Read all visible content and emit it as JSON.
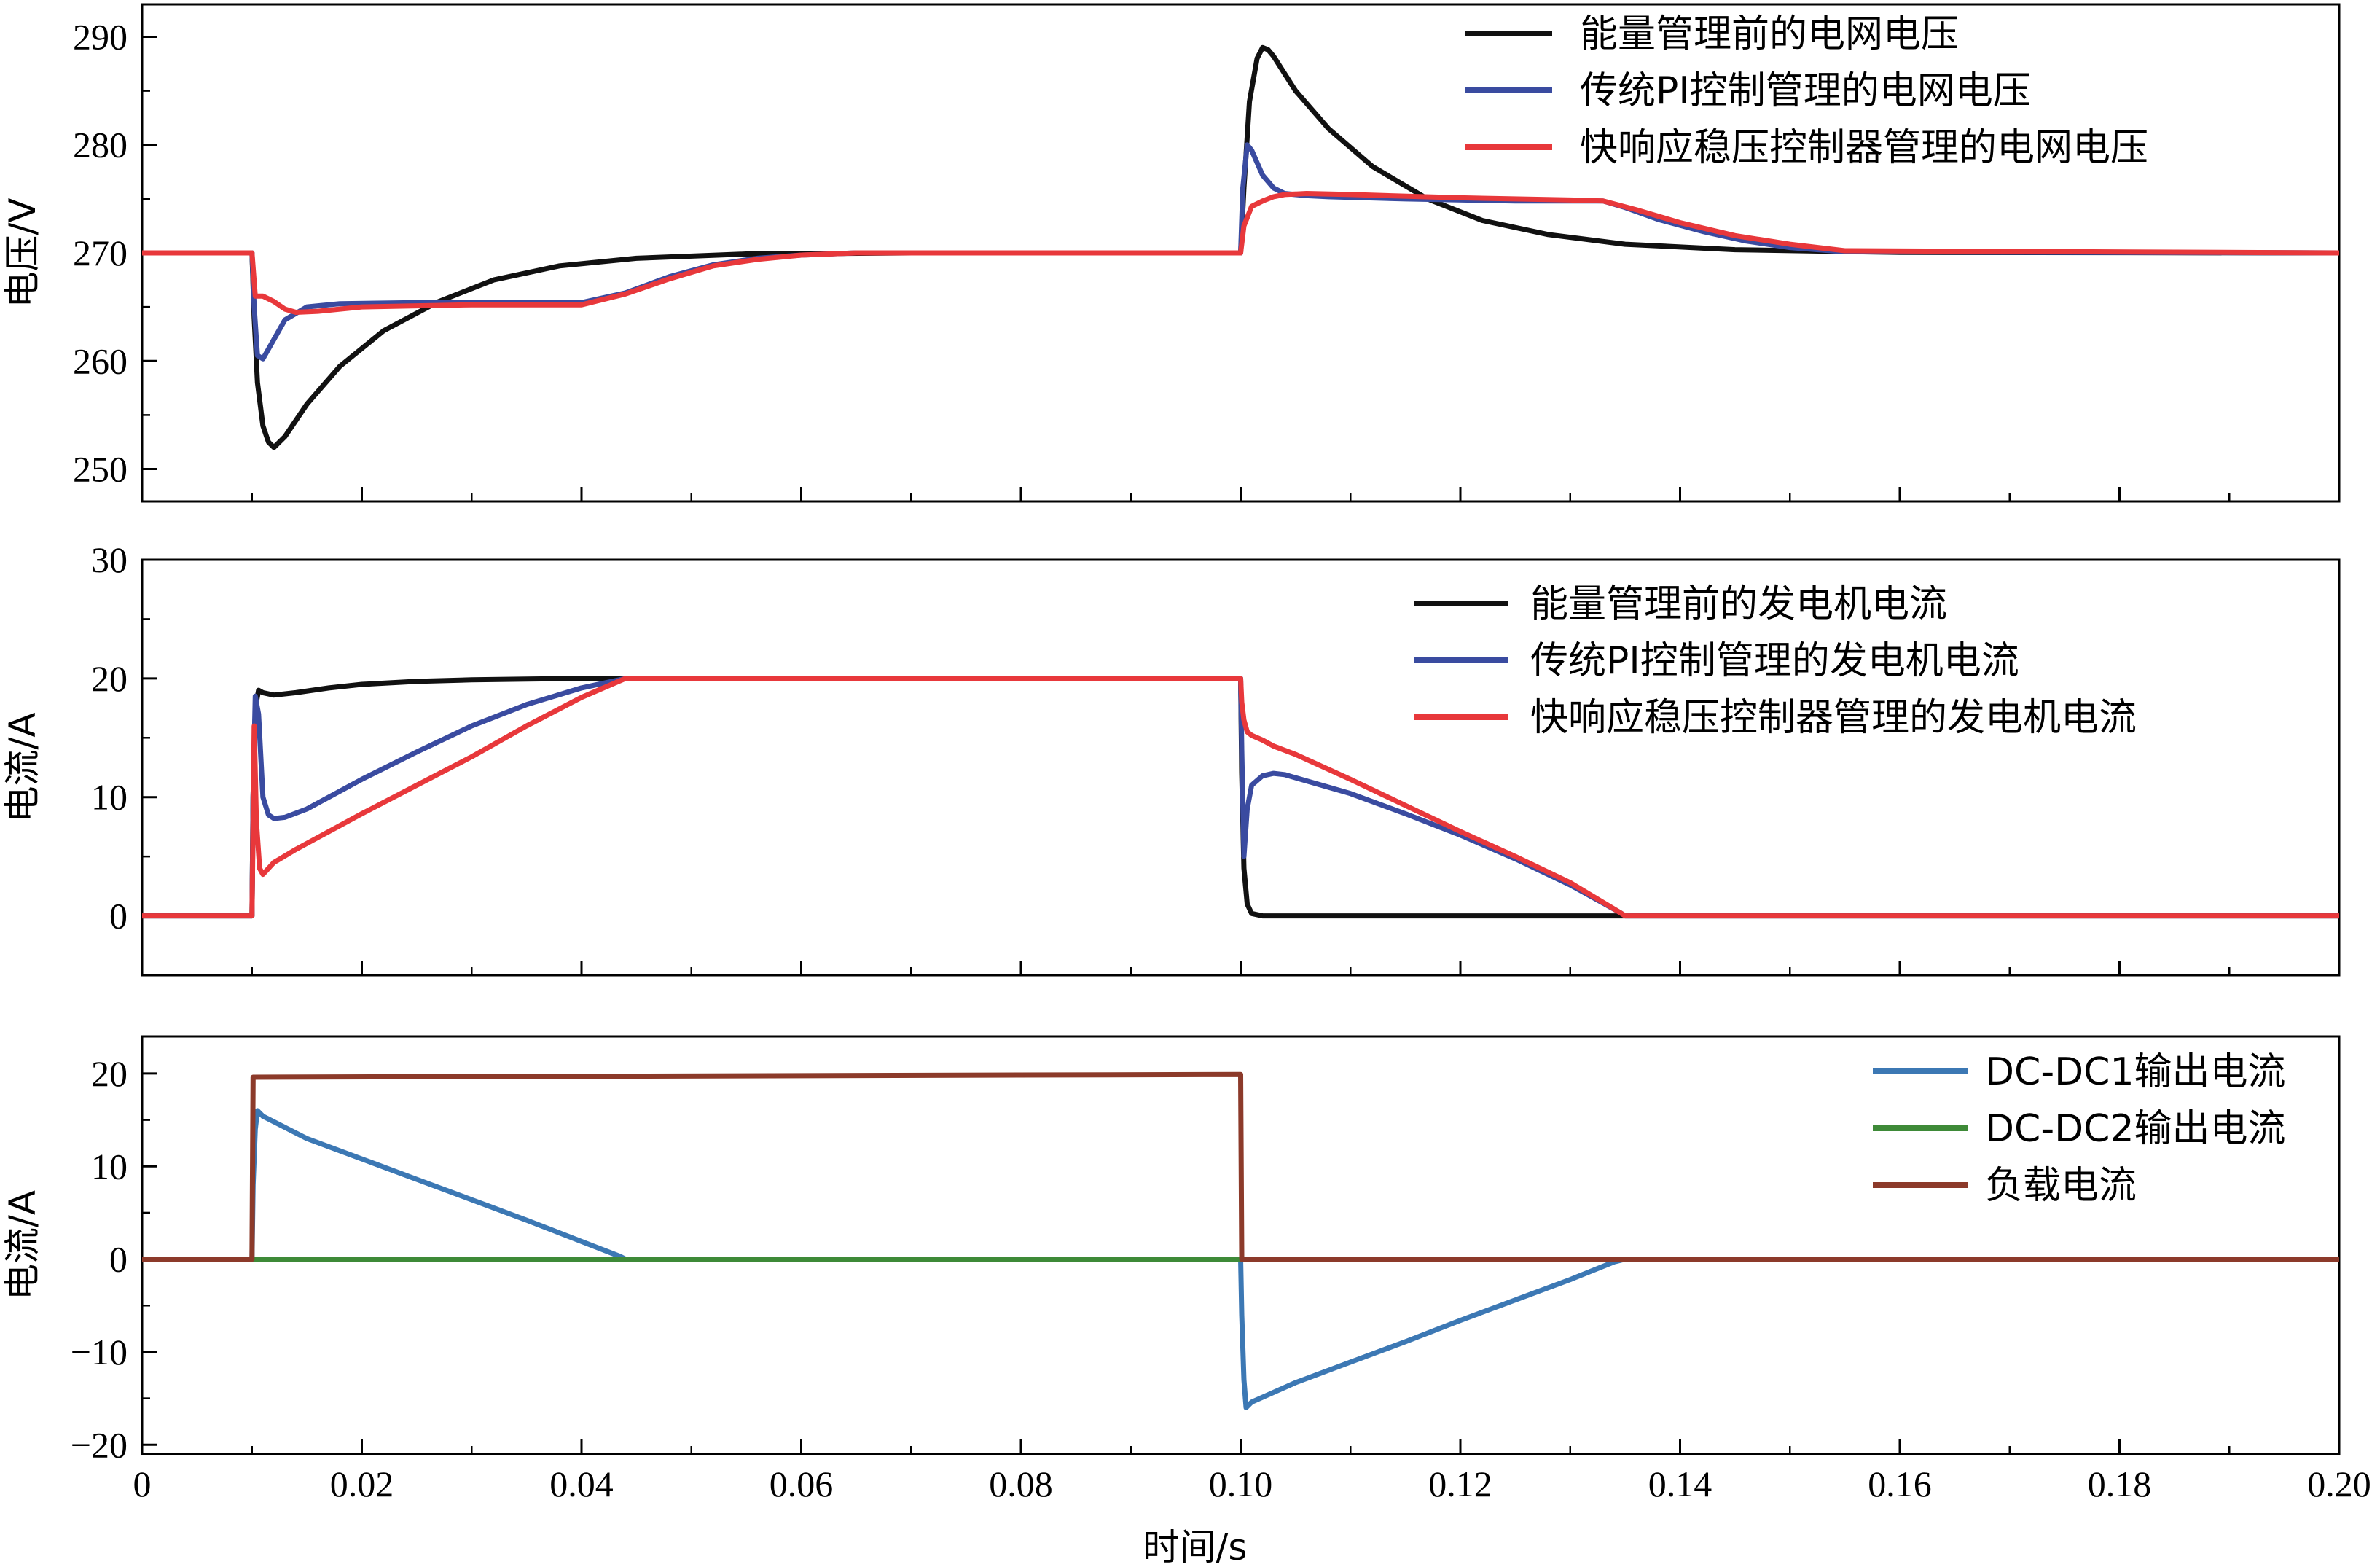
{
  "colors": {
    "black": "#111111",
    "blue": "#3a4ba0",
    "red": "#e8383b",
    "steel_blue": "#3c78b4",
    "green": "#3e8a38",
    "brown": "#8c3a2a"
  },
  "chart_data": [
    {
      "type": "line",
      "panel": "top",
      "ylabel": "电压/V",
      "xlabel": "",
      "xlim": [
        0,
        0.2
      ],
      "ylim": [
        247,
        293
      ],
      "yticks": [
        250,
        260,
        270,
        280,
        290
      ],
      "ytick_labels": [
        "250",
        "260",
        "270",
        "280",
        "290"
      ],
      "legend_position": "top-right",
      "series": [
        {
          "name": "能量管理前的电网电压",
          "color": "black",
          "x": [
            0,
            0.01,
            0.0102,
            0.0105,
            0.011,
            0.0115,
            0.012,
            0.013,
            0.015,
            0.018,
            0.022,
            0.027,
            0.032,
            0.038,
            0.045,
            0.055,
            0.07,
            0.1,
            0.1003,
            0.1008,
            0.1015,
            0.102,
            0.1025,
            0.103,
            0.105,
            0.108,
            0.112,
            0.117,
            0.122,
            0.128,
            0.135,
            0.145,
            0.16,
            0.2
          ],
          "y": [
            270,
            270,
            264,
            258,
            254,
            252.5,
            252,
            253,
            256,
            259.5,
            262.8,
            265.5,
            267.5,
            268.8,
            269.5,
            269.9,
            270,
            270,
            276,
            284,
            288,
            289,
            288.8,
            288.2,
            285,
            281.5,
            278,
            275,
            273,
            271.7,
            270.8,
            270.3,
            270.05,
            270
          ]
        },
        {
          "name": "传统PI控制管理的电网电压",
          "color": "blue",
          "x": [
            0,
            0.01,
            0.0102,
            0.0105,
            0.011,
            0.012,
            0.013,
            0.015,
            0.018,
            0.025,
            0.03,
            0.04,
            0.044,
            0.048,
            0.052,
            0.056,
            0.06,
            0.065,
            0.1,
            0.1002,
            0.1006,
            0.101,
            0.102,
            0.103,
            0.104,
            0.106,
            0.108,
            0.115,
            0.125,
            0.133,
            0.135,
            0.138,
            0.142,
            0.146,
            0.15,
            0.155,
            0.2
          ],
          "y": [
            270,
            270,
            265,
            260.5,
            260.2,
            262,
            263.8,
            265,
            265.3,
            265.4,
            265.4,
            265.4,
            266.3,
            267.8,
            268.9,
            269.5,
            269.8,
            270,
            270,
            276,
            280,
            279.5,
            277.2,
            276,
            275.5,
            275.3,
            275.2,
            275,
            274.8,
            274.8,
            274.2,
            273.1,
            272,
            271.1,
            270.5,
            270.1,
            270
          ]
        },
        {
          "name": "快响应稳压控制器管理的电网电压",
          "color": "red",
          "x": [
            0,
            0.01,
            0.0103,
            0.011,
            0.012,
            0.013,
            0.014,
            0.016,
            0.02,
            0.03,
            0.04,
            0.044,
            0.048,
            0.052,
            0.056,
            0.06,
            0.065,
            0.1,
            0.1003,
            0.101,
            0.102,
            0.103,
            0.104,
            0.106,
            0.11,
            0.12,
            0.13,
            0.133,
            0.136,
            0.14,
            0.145,
            0.15,
            0.155,
            0.2
          ],
          "y": [
            270,
            270,
            266,
            266,
            265.5,
            264.8,
            264.5,
            264.6,
            265,
            265.2,
            265.2,
            266.2,
            267.6,
            268.8,
            269.4,
            269.8,
            270,
            270,
            272.5,
            274.3,
            274.8,
            275.2,
            275.4,
            275.5,
            275.4,
            275.1,
            274.9,
            274.8,
            274,
            272.8,
            271.6,
            270.8,
            270.2,
            270
          ]
        }
      ]
    },
    {
      "type": "line",
      "panel": "middle",
      "ylabel": "电流/A",
      "xlabel": "",
      "xlim": [
        0,
        0.2
      ],
      "ylim": [
        -5,
        30
      ],
      "yticks": [
        0,
        10,
        20,
        30
      ],
      "ytick_labels": [
        "0",
        "10",
        "20",
        "30"
      ],
      "legend_position": "top-right",
      "series": [
        {
          "name": "能量管理前的发电机电流",
          "color": "black",
          "x": [
            0,
            0.01,
            0.0101,
            0.0103,
            0.0106,
            0.011,
            0.012,
            0.014,
            0.017,
            0.02,
            0.025,
            0.03,
            0.035,
            0.04,
            0.05,
            0.1,
            0.1001,
            0.1003,
            0.1006,
            0.101,
            0.102,
            0.2
          ],
          "y": [
            0,
            0,
            10,
            17.5,
            19,
            18.8,
            18.6,
            18.8,
            19.2,
            19.5,
            19.75,
            19.88,
            19.95,
            20,
            20,
            20,
            12,
            4,
            1,
            0.2,
            0,
            0
          ]
        },
        {
          "name": "传统PI控制管理的发电机电流",
          "color": "blue",
          "x": [
            0,
            0.01,
            0.0101,
            0.0103,
            0.0106,
            0.011,
            0.0115,
            0.012,
            0.013,
            0.015,
            0.02,
            0.025,
            0.03,
            0.035,
            0.04,
            0.044,
            0.045,
            0.1,
            0.1001,
            0.1003,
            0.1006,
            0.101,
            0.102,
            0.103,
            0.104,
            0.11,
            0.115,
            0.12,
            0.125,
            0.13,
            0.1345,
            0.135,
            0.2
          ],
          "y": [
            0,
            0,
            10,
            18.5,
            17,
            10,
            8.5,
            8.2,
            8.3,
            9,
            11.5,
            13.8,
            16,
            17.8,
            19.2,
            20,
            20,
            20,
            14,
            5,
            9,
            11,
            11.8,
            12,
            11.9,
            10.3,
            8.6,
            6.8,
            4.8,
            2.6,
            0.3,
            0,
            0
          ]
        },
        {
          "name": "快响应稳压控制器管理的发电机电流",
          "color": "red",
          "x": [
            0,
            0.01,
            0.0101,
            0.0102,
            0.0104,
            0.0107,
            0.011,
            0.012,
            0.014,
            0.016,
            0.02,
            0.025,
            0.03,
            0.035,
            0.04,
            0.044,
            0.045,
            0.1,
            0.1001,
            0.1003,
            0.1006,
            0.101,
            0.102,
            0.103,
            0.105,
            0.11,
            0.115,
            0.12,
            0.125,
            0.13,
            0.1345,
            0.135,
            0.2
          ],
          "y": [
            0,
            0,
            8,
            16,
            8,
            4,
            3.5,
            4.5,
            5.6,
            6.6,
            8.6,
            11,
            13.4,
            16,
            18.4,
            20,
            20,
            20,
            18,
            16.5,
            15.5,
            15.2,
            14.8,
            14.3,
            13.6,
            11.5,
            9.3,
            7.1,
            5,
            2.8,
            0.3,
            0,
            0
          ]
        }
      ]
    },
    {
      "type": "line",
      "panel": "bottom",
      "ylabel": "电流/A",
      "xlabel": "时间/s",
      "xlim": [
        0,
        0.2
      ],
      "ylim": [
        -21,
        24
      ],
      "yticks": [
        -20,
        -10,
        0,
        10,
        20
      ],
      "ytick_labels": [
        "−20",
        "−10",
        "0",
        "10",
        "20"
      ],
      "xticks": [
        0,
        0.02,
        0.04,
        0.06,
        0.08,
        0.1,
        0.12,
        0.14,
        0.16,
        0.18,
        0.2
      ],
      "xtick_labels": [
        "0",
        "0.02",
        "0.04",
        "0.06",
        "0.08",
        "0.10",
        "0.12",
        "0.14",
        "0.16",
        "0.18",
        "0.20"
      ],
      "legend_position": "top-right",
      "series": [
        {
          "name": "DC-DC1输出电流",
          "color": "steel_blue",
          "x": [
            0,
            0.01,
            0.0101,
            0.0103,
            0.0105,
            0.011,
            0.015,
            0.02,
            0.025,
            0.03,
            0.035,
            0.04,
            0.0435,
            0.044,
            0.1,
            0.1001,
            0.1003,
            0.1005,
            0.101,
            0.105,
            0.11,
            0.115,
            0.12,
            0.125,
            0.13,
            0.134,
            0.135,
            0.2
          ],
          "y": [
            0,
            0,
            8,
            14,
            16,
            15.4,
            13,
            10.8,
            8.6,
            6.4,
            4.2,
            1.9,
            0.3,
            0,
            0,
            -6,
            -13,
            -16,
            -15.4,
            -13.3,
            -11.1,
            -8.9,
            -6.6,
            -4.4,
            -2.2,
            -0.3,
            0,
            0
          ]
        },
        {
          "name": "DC-DC2输出电流",
          "color": "green",
          "x": [
            0,
            0.2
          ],
          "y": [
            0,
            0
          ]
        },
        {
          "name": "负载电流",
          "color": "brown",
          "x": [
            0,
            0.01,
            0.0101,
            0.1,
            0.1001,
            0.2
          ],
          "y": [
            0,
            0,
            19.6,
            19.9,
            0,
            0
          ]
        }
      ]
    }
  ]
}
